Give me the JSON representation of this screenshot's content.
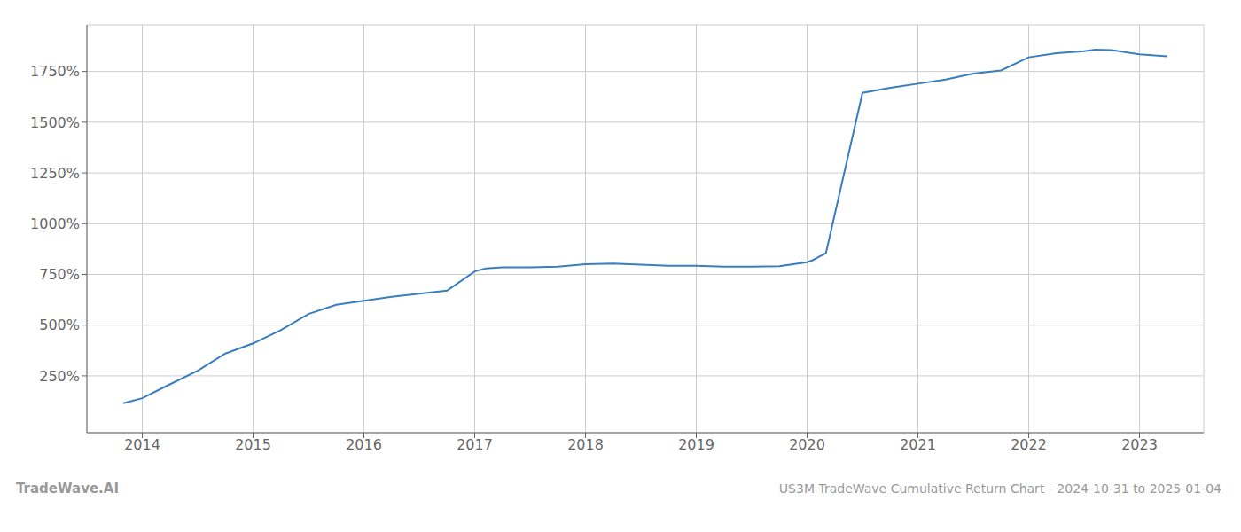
{
  "chart_data": {
    "type": "line",
    "title": "US3M TradeWave Cumulative Return Chart - 2024-10-31 to 2025-01-04",
    "annotations": [
      "TradeWave.AI"
    ],
    "x": [
      2013.83,
      2014.0,
      2014.2,
      2014.5,
      2014.75,
      2015.0,
      2015.25,
      2015.5,
      2015.75,
      2016.0,
      2016.25,
      2016.5,
      2016.75,
      2017.0,
      2017.1,
      2017.25,
      2017.5,
      2017.75,
      2018.0,
      2018.25,
      2018.5,
      2018.75,
      2019.0,
      2019.25,
      2019.5,
      2019.75,
      2020.0,
      2020.05,
      2020.1,
      2020.17,
      2020.5,
      2020.75,
      2021.0,
      2021.25,
      2021.5,
      2021.75,
      2022.0,
      2022.25,
      2022.5,
      2022.6,
      2022.75,
      2023.0,
      2023.25
    ],
    "values": [
      115,
      140,
      195,
      275,
      360,
      410,
      475,
      555,
      600,
      620,
      640,
      655,
      670,
      765,
      780,
      785,
      785,
      788,
      800,
      803,
      798,
      793,
      793,
      788,
      788,
      790,
      810,
      820,
      835,
      855,
      1645,
      1670,
      1690,
      1710,
      1740,
      1755,
      1820,
      1840,
      1850,
      1858,
      1855,
      1835,
      1825
    ],
    "color": "#3a7ebf",
    "xlim": [
      2013.5,
      2023.58
    ],
    "ylim": [
      -30,
      1980
    ],
    "xticks": [
      2014,
      2015,
      2016,
      2017,
      2018,
      2019,
      2020,
      2021,
      2022,
      2023
    ],
    "yticks": [
      {
        "value": 250,
        "label": "250%"
      },
      {
        "value": 500,
        "label": "500%"
      },
      {
        "value": 750,
        "label": "750%"
      },
      {
        "value": 1000,
        "label": "1000%"
      },
      {
        "value": 1250,
        "label": "1250%"
      },
      {
        "value": 1500,
        "label": "1500%"
      },
      {
        "value": 1750,
        "label": "1750%"
      }
    ],
    "grid": true
  }
}
